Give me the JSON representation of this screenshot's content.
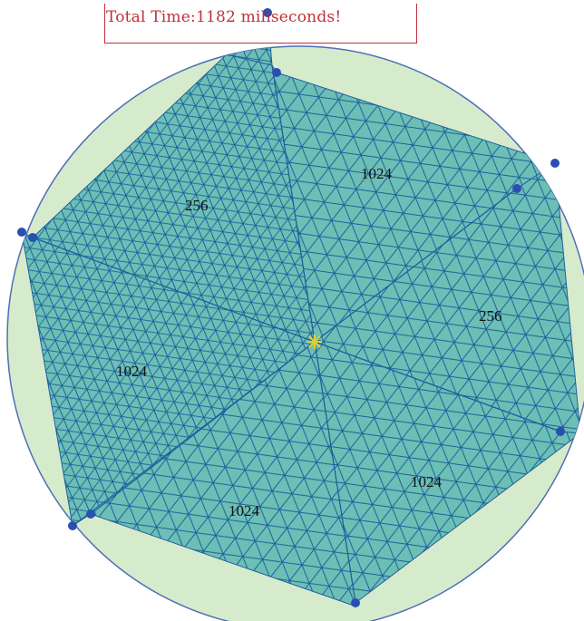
{
  "status": {
    "timer_text": "Total Time:1182 miliseconds!"
  },
  "regions": [
    {
      "id": "top-left",
      "label": "256"
    },
    {
      "id": "top-right",
      "label": "1024"
    },
    {
      "id": "right",
      "label": "256"
    },
    {
      "id": "left",
      "label": "1024"
    },
    {
      "id": "bottom-right",
      "label": "1024"
    },
    {
      "id": "bottom-left",
      "label": "1024"
    }
  ],
  "colors": {
    "disk_fill": "#d6ebcc",
    "disk_stroke": "#4f6fb5",
    "mesh_fill": "#6cbfb4",
    "mesh_line": "#1f5f9e",
    "vertex": "#2a4fb0",
    "center_marker": "#d9d13a",
    "timer_red": "#c0303a"
  }
}
